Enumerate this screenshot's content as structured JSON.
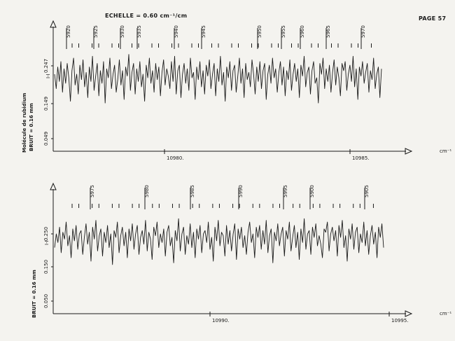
{
  "header": {
    "scale_label": "ECHELLE = 0.60 cm⁻¹/cm",
    "page_label": "PAGE 57"
  },
  "colors": {
    "paper": "#f4f3ef",
    "ink": "#1a1a1a"
  },
  "chart_data": [
    {
      "type": "line",
      "title": "",
      "xlabel": "cm⁻¹",
      "ylabel": "Molécule de rubidium",
      "noise_label": "BRUIT = 0.16 mm",
      "intensity_symbol": "I-I",
      "y_ticks": [
        "0.247",
        "0.149",
        "0.049"
      ],
      "x_ticks": [
        "10980.",
        "10985."
      ],
      "line_numbers": [
        "5920",
        "5925",
        "5930",
        "5935",
        "5940",
        "5945",
        "5950",
        "5955",
        "5960",
        "5965",
        "5970"
      ],
      "series": [
        {
          "values": [
            0.24,
            0.16,
            0.28,
            0.2,
            0.31,
            0.14,
            0.27,
            0.19,
            0.3,
            0.22,
            0.09,
            0.26,
            0.33,
            0.18,
            0.24,
            0.13,
            0.29,
            0.21,
            0.32,
            0.17,
            0.25,
            0.11,
            0.28,
            0.2,
            0.34,
            0.15,
            0.23,
            0.3,
            0.12,
            0.26,
            0.19,
            0.31,
            0.08,
            0.27,
            0.22,
            0.33,
            0.16,
            0.24,
            0.29,
            0.14,
            0.21,
            0.32,
            0.18,
            0.26,
            0.1,
            0.28,
            0.23,
            0.35,
            0.15,
            0.25,
            0.3,
            0.13,
            0.27,
            0.2,
            0.31,
            0.17,
            0.24,
            0.09,
            0.29,
            0.22,
            0.33,
            0.19,
            0.26,
            0.14,
            0.3,
            0.21,
            0.28,
            0.12,
            0.25,
            0.32,
            0.18,
            0.27,
            0.23,
            0.16,
            0.31,
            0.2,
            0.34,
            0.13,
            0.26,
            0.29,
            0.11,
            0.24,
            0.3,
            0.19,
            0.27,
            0.15,
            0.33,
            0.22,
            0.25,
            0.1,
            0.28,
            0.21,
            0.31,
            0.17,
            0.26,
            0.13,
            0.29,
            0.23,
            0.32,
            0.16,
            0.24,
            0.3,
            0.12,
            0.27,
            0.2,
            0.34,
            0.18,
            0.25,
            0.09,
            0.28,
            0.22,
            0.31,
            0.15,
            0.26,
            0.29,
            0.14,
            0.23,
            0.33,
            0.19,
            0.27,
            0.11,
            0.3,
            0.21,
            0.25,
            0.17,
            0.32,
            0.24,
            0.13,
            0.28,
            0.2,
            0.31,
            0.16,
            0.26,
            0.3,
            0.1,
            0.24,
            0.29,
            0.19,
            0.33,
            0.22,
            0.27,
            0.14,
            0.25,
            0.31,
            0.18,
            0.28,
            0.12,
            0.26,
            0.21,
            0.32,
            0.15,
            0.24,
            0.3,
            0.2,
            0.27,
            0.11,
            0.29,
            0.23,
            0.34,
            0.17,
            0.25,
            0.28,
            0.13,
            0.26,
            0.31,
            0.19,
            0.22,
            0.08,
            0.3,
            0.24,
            0.33,
            0.16,
            0.27,
            0.2,
            0.29,
            0.14,
            0.25,
            0.32,
            0.18,
            0.28,
            0.22,
            0.12,
            0.3,
            0.26,
            0.31,
            0.15,
            0.24,
            0.29,
            0.2,
            0.34,
            0.17,
            0.27,
            0.1,
            0.28,
            0.23,
            0.31,
            0.19,
            0.25,
            0.3,
            0.14,
            0.26,
            0.21,
            0.33,
            0.16,
            0.24,
            0.28,
            0.11,
            0.27
          ]
        }
      ]
    },
    {
      "type": "line",
      "title": "",
      "xlabel": "cm⁻¹",
      "ylabel": "",
      "noise_label": "BRUIT = 0.16 mm",
      "intensity_symbol": "I-I",
      "y_ticks": [
        "0.250",
        "0.150",
        "0.050"
      ],
      "x_ticks": [
        "10990.",
        "10995."
      ],
      "line_numbers": [
        "5975",
        "5980",
        "5985",
        "5990",
        "5995",
        "5900",
        "5905"
      ],
      "series": [
        {
          "values": [
            0.18,
            0.26,
            0.21,
            0.3,
            0.15,
            0.27,
            0.23,
            0.33,
            0.19,
            0.25,
            0.12,
            0.29,
            0.22,
            0.31,
            0.17,
            0.26,
            0.28,
            0.14,
            0.24,
            0.32,
            0.2,
            0.27,
            0.1,
            0.3,
            0.23,
            0.34,
            0.16,
            0.25,
            0.29,
            0.13,
            0.27,
            0.21,
            0.31,
            0.18,
            0.26,
            0.08,
            0.28,
            0.24,
            0.33,
            0.15,
            0.25,
            0.3,
            0.19,
            0.27,
            0.12,
            0.29,
            0.22,
            0.32,
            0.17,
            0.26,
            0.31,
            0.14,
            0.24,
            0.28,
            0.2,
            0.34,
            0.16,
            0.27,
            0.23,
            0.11,
            0.3,
            0.25,
            0.33,
            0.18,
            0.26,
            0.21,
            0.29,
            0.13,
            0.27,
            0.31,
            0.19,
            0.24,
            0.09,
            0.28,
            0.22,
            0.35,
            0.16,
            0.26,
            0.3,
            0.14,
            0.25,
            0.2,
            0.32,
            0.18,
            0.27,
            0.12,
            0.29,
            0.23,
            0.31,
            0.15,
            0.26,
            0.28,
            0.21,
            0.33,
            0.17,
            0.24,
            0.1,
            0.3,
            0.22,
            0.34,
            0.19,
            0.27,
            0.25,
            0.13,
            0.31,
            0.2,
            0.28,
            0.16,
            0.26,
            0.32,
            0.11,
            0.29,
            0.23,
            0.3,
            0.18,
            0.25,
            0.14,
            0.27,
            0.33,
            0.21,
            0.26,
            0.12,
            0.3,
            0.24,
            0.31,
            0.17,
            0.28,
            0.2,
            0.34,
            0.15,
            0.25,
            0.29,
            0.09,
            0.27,
            0.22,
            0.32,
            0.19,
            0.26,
            0.3,
            0.13,
            0.28,
            0.23,
            0.33,
            0.16,
            0.24,
            0.31,
            0.18,
            0.27,
            0.11,
            0.29,
            0.21,
            0.35,
            0.17,
            0.26,
            0.28,
            0.14,
            0.3,
            0.24,
            0.32,
            0.19,
            0.25,
            0.2,
            0.12,
            0.29,
            0.27,
            0.33,
            0.16,
            0.26,
            0.3,
            0.22,
            0.28,
            0.13,
            0.31,
            0.24,
            0.34,
            0.18,
            0.25,
            0.1,
            0.29,
            0.23,
            0.32,
            0.17,
            0.27,
            0.3,
            0.15,
            0.26,
            0.21,
            0.33,
            0.19,
            0.28,
            0.14,
            0.25,
            0.31,
            0.2,
            0.27,
            0.12,
            0.3,
            0.24,
            0.32,
            0.18
          ]
        }
      ]
    }
  ]
}
